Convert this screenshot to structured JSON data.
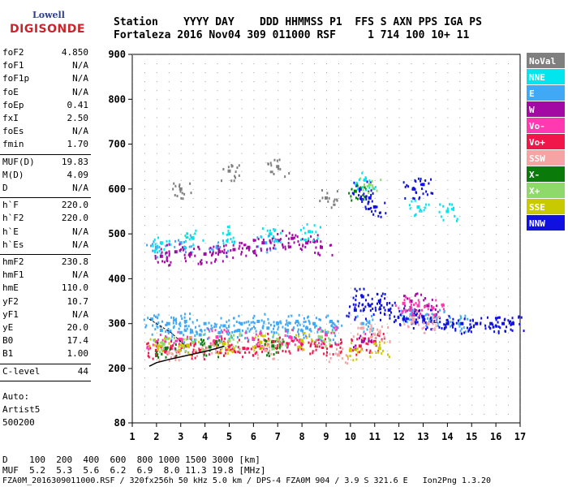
{
  "logo": {
    "top": "Lowell",
    "bottom": "DIGISONDE"
  },
  "header": {
    "row1": "Station    YYYY DAY    DDD HHMMSS P1  FFS S AXN PPS IGA PS",
    "row2": "Fortaleza 2016 Nov04 309 011000 RSF     1 714 100 10+ 11"
  },
  "params": {
    "group1": [
      {
        "name": "foF2",
        "value": "4.850"
      },
      {
        "name": "foF1",
        "value": "N/A"
      },
      {
        "name": "foF1p",
        "value": "N/A"
      },
      {
        "name": "foE",
        "value": "N/A"
      },
      {
        "name": "foEp",
        "value": "0.41"
      },
      {
        "name": "fxI",
        "value": "2.50"
      },
      {
        "name": "foEs",
        "value": "N/A"
      },
      {
        "name": "fmin",
        "value": "1.70"
      }
    ],
    "group2": [
      {
        "name": "MUF(D)",
        "value": "19.83"
      },
      {
        "name": "M(D)",
        "value": "4.09"
      },
      {
        "name": "D",
        "value": "N/A"
      }
    ],
    "group3": [
      {
        "name": "h`F",
        "value": "220.0"
      },
      {
        "name": "h`F2",
        "value": "220.0"
      },
      {
        "name": "h`E",
        "value": "N/A"
      },
      {
        "name": "h`Es",
        "value": "N/A"
      }
    ],
    "group4": [
      {
        "name": "hmF2",
        "value": "230.8"
      },
      {
        "name": "hmF1",
        "value": "N/A"
      },
      {
        "name": "hmE",
        "value": "110.0"
      },
      {
        "name": "yF2",
        "value": "10.7"
      },
      {
        "name": "yF1",
        "value": "N/A"
      },
      {
        "name": "yE",
        "value": "20.0"
      },
      {
        "name": "B0",
        "value": "17.4"
      },
      {
        "name": "B1",
        "value": "1.00"
      }
    ],
    "group5": [
      {
        "name": "C-level",
        "value": "44"
      }
    ]
  },
  "auto": {
    "label": "Auto:",
    "scaler": "Artist5",
    "version": "500200"
  },
  "footer": {
    "d_row": "D    100  200  400  600  800 1000 1500 3000 [km]",
    "muf_row": "MUF  5.2  5.3  5.6  6.2  6.9  8.0 11.3 19.8 [MHz]",
    "info_row": "FZA0M_2016309011000.RSF / 320fx256h 50 kHz 5.0 km / DPS-4 FZA0M 904 / 3.9 S 321.6 E   Ion2Png 1.3.20"
  },
  "legend": [
    {
      "label": "NoVal",
      "bg": "#7f7f7f",
      "fg": "#ffffff"
    },
    {
      "label": "NNE",
      "bg": "#00e5ee",
      "fg": "#ffffff"
    },
    {
      "label": "E",
      "bg": "#3fa9f5",
      "fg": "#ffffff"
    },
    {
      "label": "W",
      "bg": "#a30aa3",
      "fg": "#ffffff"
    },
    {
      "label": "Vo-",
      "bg": "#ff3ab0",
      "fg": "#ffffff"
    },
    {
      "label": "Vo+",
      "bg": "#f0164a",
      "fg": "#ffffff"
    },
    {
      "label": "SSW",
      "bg": "#f5a3a3",
      "fg": "#ffffff"
    },
    {
      "label": "X-",
      "bg": "#0a7a0a",
      "fg": "#ffffff"
    },
    {
      "label": "X+",
      "bg": "#8fd96b",
      "fg": "#ffffff"
    },
    {
      "label": "SSE",
      "bg": "#c9c900",
      "fg": "#ffffff"
    },
    {
      "label": "NNW",
      "bg": "#1010e0",
      "fg": "#ffffff"
    }
  ],
  "chart_data": {
    "type": "scatter",
    "title": "",
    "xlabel": "",
    "ylabel": "",
    "xlim": [
      1,
      17
    ],
    "ylim": [
      80,
      900
    ],
    "x_ticks": [
      "1",
      "2",
      "3",
      "4",
      "5",
      "6",
      "7",
      "8",
      "9",
      "10",
      "11",
      "12",
      "13",
      "14",
      "15",
      "16",
      "17"
    ],
    "y_ticks": [
      "80",
      "200",
      "300",
      "400",
      "500",
      "600",
      "700",
      "800",
      "900"
    ],
    "y_tick_values": [
      80,
      200,
      300,
      400,
      500,
      600,
      700,
      800,
      900
    ],
    "grid": true,
    "legend_position": "right",
    "series": [
      {
        "name": "E",
        "color": "#3fa9f5",
        "points": [
          [
            1.8,
            310
          ],
          [
            2.5,
            300
          ],
          [
            3.2,
            305
          ],
          [
            4.0,
            300
          ],
          [
            4.8,
            295
          ],
          [
            5.5,
            300
          ],
          [
            6.2,
            305
          ],
          [
            7.0,
            300
          ],
          [
            7.8,
            305
          ],
          [
            8.5,
            300
          ],
          [
            9.2,
            305
          ],
          [
            2.2,
            285
          ],
          [
            3.0,
            280
          ],
          [
            3.8,
            275
          ],
          [
            4.6,
            280
          ],
          [
            5.4,
            285
          ],
          [
            6.6,
            290
          ],
          [
            7.4,
            285
          ],
          [
            8.2,
            290
          ],
          [
            9.0,
            280
          ],
          [
            2.0,
            470
          ],
          [
            3.0,
            480
          ],
          [
            4.5,
            470
          ],
          [
            6.5,
            480
          ],
          [
            10.5,
            300
          ],
          [
            12.5,
            320
          ],
          [
            13.5,
            315
          ],
          [
            14.5,
            300
          ]
        ]
      },
      {
        "name": "Vo+",
        "color": "#f0164a",
        "points": [
          [
            2.0,
            240
          ],
          [
            2.6,
            245
          ],
          [
            3.2,
            250
          ],
          [
            3.8,
            240
          ],
          [
            4.4,
            255
          ],
          [
            5.0,
            250
          ],
          [
            5.6,
            245
          ],
          [
            6.2,
            250
          ],
          [
            6.8,
            260
          ],
          [
            7.4,
            255
          ],
          [
            8.0,
            255
          ],
          [
            8.6,
            250
          ],
          [
            9.2,
            250
          ],
          [
            10.4,
            250
          ],
          [
            11.0,
            260
          ]
        ]
      },
      {
        "name": "W",
        "color": "#a30aa3",
        "points": [
          [
            2.2,
            450
          ],
          [
            2.8,
            460
          ],
          [
            3.4,
            455
          ],
          [
            4.0,
            455
          ],
          [
            4.6,
            460
          ],
          [
            5.2,
            465
          ],
          [
            5.8,
            470
          ],
          [
            6.4,
            480
          ],
          [
            7.0,
            485
          ],
          [
            7.6,
            490
          ],
          [
            8.2,
            480
          ],
          [
            8.8,
            470
          ],
          [
            10.5,
            260
          ],
          [
            12.5,
            350
          ],
          [
            13.2,
            340
          ]
        ]
      },
      {
        "name": "NNW",
        "color": "#1010e0",
        "points": [
          [
            10.2,
            330
          ],
          [
            10.5,
            360
          ],
          [
            10.8,
            340
          ],
          [
            11.2,
            350
          ],
          [
            11.6,
            330
          ],
          [
            12.2,
            310
          ],
          [
            12.6,
            320
          ],
          [
            13.0,
            315
          ],
          [
            13.5,
            305
          ],
          [
            14.0,
            300
          ],
          [
            14.6,
            300
          ],
          [
            15.2,
            300
          ],
          [
            15.8,
            300
          ],
          [
            16.3,
            300
          ],
          [
            16.7,
            300
          ],
          [
            10.4,
            600
          ],
          [
            10.8,
            580
          ],
          [
            11.0,
            560
          ],
          [
            12.6,
            600
          ],
          [
            13.0,
            610
          ]
        ]
      },
      {
        "name": "Vo-",
        "color": "#ff3ab0",
        "points": [
          [
            2.0,
            260
          ],
          [
            3.0,
            265
          ],
          [
            4.5,
            270
          ],
          [
            6.0,
            265
          ],
          [
            7.5,
            270
          ],
          [
            9.0,
            275
          ],
          [
            12.2,
            345
          ],
          [
            12.8,
            340
          ],
          [
            13.4,
            335
          ]
        ]
      },
      {
        "name": "SSW",
        "color": "#f5a3a3",
        "points": [
          [
            2.5,
            235
          ],
          [
            4.0,
            240
          ],
          [
            6.5,
            240
          ],
          [
            9.5,
            230
          ],
          [
            10.5,
            290
          ],
          [
            11.2,
            280
          ],
          [
            12.6,
            310
          ],
          [
            13.2,
            300
          ]
        ]
      },
      {
        "name": "X+",
        "color": "#8fd96b",
        "points": [
          [
            2.3,
            255
          ],
          [
            3.5,
            258
          ],
          [
            5.0,
            262
          ],
          [
            7.0,
            265
          ],
          [
            8.8,
            270
          ],
          [
            10.8,
            610
          ]
        ]
      },
      {
        "name": "SSE",
        "color": "#c9c900",
        "points": [
          [
            2.1,
            250
          ],
          [
            3.3,
            252
          ],
          [
            4.8,
            256
          ],
          [
            6.3,
            258
          ],
          [
            8.0,
            262
          ],
          [
            10.0,
            240
          ],
          [
            11.2,
            245
          ]
        ]
      },
      {
        "name": "X-",
        "color": "#0a7a0a",
        "points": [
          [
            2.4,
            245
          ],
          [
            4.2,
            248
          ],
          [
            6.8,
            250
          ],
          [
            10.2,
            595
          ]
        ]
      },
      {
        "name": "NNE",
        "color": "#00e5ee",
        "points": [
          [
            2.2,
            480
          ],
          [
            3.5,
            490
          ],
          [
            5.0,
            500
          ],
          [
            6.7,
            500
          ],
          [
            8.3,
            505
          ],
          [
            10.6,
            620
          ],
          [
            12.8,
            560
          ],
          [
            14.0,
            550
          ]
        ]
      },
      {
        "name": "NoVal",
        "color": "#7f7f7f",
        "points": [
          [
            3.0,
            600
          ],
          [
            5.0,
            640
          ],
          [
            7.0,
            650
          ],
          [
            9.0,
            580
          ]
        ]
      }
    ],
    "trace": {
      "x": [
        1.7,
        2.0,
        2.5,
        3.0,
        3.5,
        4.0,
        4.5,
        4.8
      ],
      "y": [
        205,
        213,
        220,
        226,
        232,
        238,
        245,
        250
      ]
    }
  }
}
